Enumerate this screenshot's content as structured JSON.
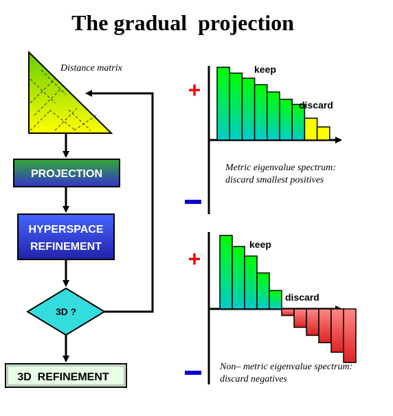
{
  "title": "The gradual  projection",
  "flow": {
    "matrix_label": "Distance matrix",
    "projection": "PROJECTION",
    "hyper_line1": "HYPERSPACE",
    "hyper_line2": "REFINEMENT",
    "decision": "3D ?",
    "refine3d": "3D  REFINEMENT"
  },
  "spectra": [
    {
      "keep": "keep",
      "discard": "discard",
      "caption1": "Metric eigenvalue spectrum:",
      "caption2": "discard smallest positives",
      "plus": "+",
      "minus": "–",
      "values": [
        1.0,
        0.92,
        0.85,
        0.76,
        0.66,
        0.56,
        0.49,
        0.3,
        0.18
      ],
      "kept_count": 7
    },
    {
      "keep": "keep",
      "discard": "discard",
      "caption1": "Non– metric eigenvalue spectrum:",
      "caption2": "discard negatives",
      "plus": "+",
      "minus": "–",
      "values": [
        1.0,
        0.85,
        0.72,
        0.49,
        0.25,
        -0.09,
        -0.25,
        -0.36,
        -0.46,
        -0.59,
        -0.73
      ],
      "kept_count": 5
    }
  ],
  "colors": {
    "plus": "#ff0000",
    "minus": "#0000cc",
    "kept_top": "#00ff00",
    "kept_bottom": "#00cccc",
    "discard_pos": "#ffff00",
    "discard_neg_top": "#ff8888",
    "discard_neg_bottom": "#dd2222",
    "triangle_top": "#66cc00",
    "triangle_bottom": "#ffff00",
    "projection_top": "#33aa33",
    "projection_bottom": "#3333cc",
    "hyper_top": "#4466ff",
    "hyper_bottom": "#2222aa",
    "decision_fill": "#33dddd",
    "refine_fill": "#e6ffe6"
  }
}
